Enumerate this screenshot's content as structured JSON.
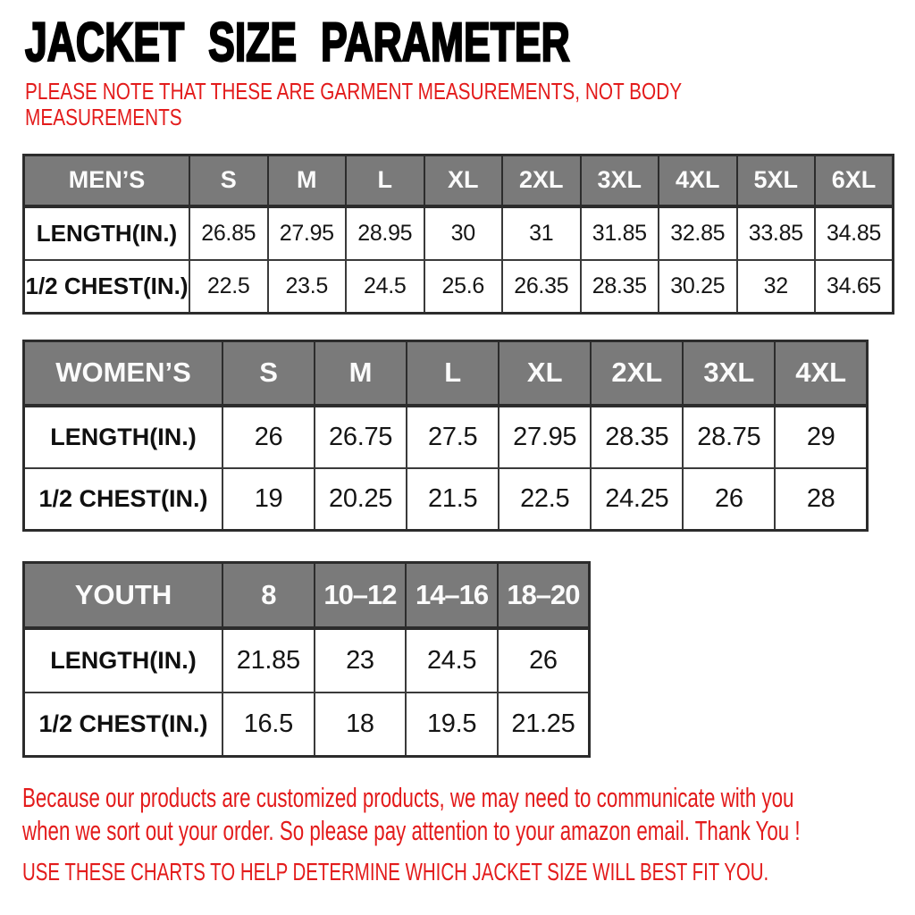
{
  "page": {
    "title": "JACKET SIZE PARAMETER",
    "note_lines": [
      "PLEASE NOTE THAT THESE ARE GARMENT MEASUREMENTS, NOT BODY",
      "MEASUREMENTS"
    ],
    "footer_lines": [
      "Because our products are customized products, we may need to communicate with you",
      "when we sort out your order. So please pay attention to your amazon email. Thank You !"
    ],
    "fit_line": "USE THESE CHARTS TO HELP DETERMINE WHICH JACKET SIZE WILL BEST FIT YOU."
  },
  "colors": {
    "accent_red": "#e31b1b",
    "header_gray": "#7a7a7a",
    "header_text": "#fbfbfb",
    "border_dark": "#2c2c2c",
    "text_black": "#111111",
    "background": "#ffffff"
  },
  "tables": [
    {
      "id": "mens",
      "header": [
        "MEN’S",
        "S",
        "M",
        "L",
        "XL",
        "2XL",
        "3XL",
        "4XL",
        "5XL",
        "6XL"
      ],
      "rows": [
        {
          "label": "LENGTH(IN.)",
          "values": [
            "26.85",
            "27.95",
            "28.95",
            "30",
            "31",
            "31.85",
            "32.85",
            "33.85",
            "34.85"
          ]
        },
        {
          "label": "1/2 CHEST(IN.)",
          "values": [
            "22.5",
            "23.5",
            "24.5",
            "25.6",
            "26.35",
            "28.35",
            "30.25",
            "32",
            "34.65"
          ]
        }
      ]
    },
    {
      "id": "womens",
      "header": [
        "WOMEN’S",
        "S",
        "M",
        "L",
        "XL",
        "2XL",
        "3XL",
        "4XL"
      ],
      "rows": [
        {
          "label": "LENGTH(IN.)",
          "values": [
            "26",
            "26.75",
            "27.5",
            "27.95",
            "28.35",
            "28.75",
            "29"
          ]
        },
        {
          "label": "1/2 CHEST(IN.)",
          "values": [
            "19",
            "20.25",
            "21.5",
            "22.5",
            "24.25",
            "26",
            "28"
          ]
        }
      ]
    },
    {
      "id": "youth",
      "header": [
        "YOUTH",
        "8",
        "10–12",
        "14–16",
        "18–20"
      ],
      "rows": [
        {
          "label": "LENGTH(IN.)",
          "values": [
            "21.85",
            "23",
            "24.5",
            "26"
          ]
        },
        {
          "label": "1/2 CHEST(IN.)",
          "values": [
            "16.5",
            "18",
            "19.5",
            "21.25"
          ]
        }
      ]
    }
  ]
}
